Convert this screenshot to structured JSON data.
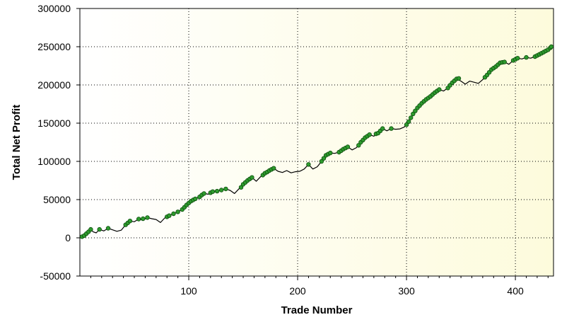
{
  "chart_data": {
    "type": "line",
    "title": "",
    "xlabel": "Trade Number",
    "ylabel": "Total Net Profit",
    "xlim": [
      0,
      435
    ],
    "ylim": [
      -50000,
      300000
    ],
    "x_ticks": [
      100,
      200,
      300,
      400
    ],
    "y_ticks": [
      -50000,
      0,
      50000,
      100000,
      150000,
      200000,
      250000,
      300000
    ],
    "grid": true,
    "legend": "none",
    "colors": {
      "line": "#000000",
      "new_high_marker": "#2e9b2e",
      "new_high_marker_edge": "#0e4e0e",
      "background_left": "#ffffff",
      "background_right": "#fdfbdc",
      "grid": "#000000"
    },
    "series": [
      {
        "values": [
          [
            0,
            0
          ],
          [
            4,
            2500
          ],
          [
            8,
            7000
          ],
          [
            10,
            11000
          ],
          [
            12,
            8000
          ],
          [
            15,
            6500
          ],
          [
            18,
            11000
          ],
          [
            22,
            9000
          ],
          [
            26,
            12500
          ],
          [
            30,
            10500
          ],
          [
            34,
            8500
          ],
          [
            38,
            10000
          ],
          [
            42,
            17000
          ],
          [
            46,
            22000
          ],
          [
            50,
            21000
          ],
          [
            54,
            24500
          ],
          [
            58,
            23000
          ],
          [
            62,
            26500
          ],
          [
            66,
            25000
          ],
          [
            70,
            24000
          ],
          [
            74,
            20000
          ],
          [
            78,
            26000
          ],
          [
            82,
            29000
          ],
          [
            86,
            31500
          ],
          [
            90,
            34000
          ],
          [
            94,
            37000
          ],
          [
            98,
            43000
          ],
          [
            102,
            48000
          ],
          [
            106,
            51000
          ],
          [
            110,
            53500
          ],
          [
            114,
            58000
          ],
          [
            118,
            57000
          ],
          [
            122,
            60500
          ],
          [
            126,
            61000
          ],
          [
            130,
            62500
          ],
          [
            134,
            64000
          ],
          [
            138,
            62000
          ],
          [
            142,
            58000
          ],
          [
            146,
            64000
          ],
          [
            150,
            70000
          ],
          [
            154,
            75000
          ],
          [
            158,
            79000
          ],
          [
            162,
            74000
          ],
          [
            166,
            80000
          ],
          [
            170,
            84500
          ],
          [
            174,
            88000
          ],
          [
            178,
            91000
          ],
          [
            182,
            87000
          ],
          [
            186,
            85500
          ],
          [
            190,
            88000
          ],
          [
            194,
            85000
          ],
          [
            198,
            86500
          ],
          [
            202,
            87000
          ],
          [
            206,
            90000
          ],
          [
            210,
            96000
          ],
          [
            214,
            90000
          ],
          [
            218,
            93000
          ],
          [
            222,
            100000
          ],
          [
            226,
            108000
          ],
          [
            230,
            111000
          ],
          [
            234,
            110500
          ],
          [
            238,
            112000
          ],
          [
            242,
            116000
          ],
          [
            246,
            119000
          ],
          [
            250,
            115000
          ],
          [
            254,
            118000
          ],
          [
            258,
            125000
          ],
          [
            262,
            131000
          ],
          [
            266,
            135000
          ],
          [
            270,
            133000
          ],
          [
            274,
            137000
          ],
          [
            278,
            143000
          ],
          [
            282,
            140000
          ],
          [
            286,
            143000
          ],
          [
            290,
            142000
          ],
          [
            294,
            142500
          ],
          [
            298,
            145000
          ],
          [
            302,
            152000
          ],
          [
            306,
            162000
          ],
          [
            310,
            170000
          ],
          [
            314,
            176000
          ],
          [
            318,
            181000
          ],
          [
            322,
            185000
          ],
          [
            326,
            190000
          ],
          [
            330,
            194000
          ],
          [
            334,
            192000
          ],
          [
            338,
            196000
          ],
          [
            342,
            203000
          ],
          [
            346,
            208000
          ],
          [
            350,
            205000
          ],
          [
            354,
            201000
          ],
          [
            358,
            205000
          ],
          [
            362,
            203500
          ],
          [
            366,
            202000
          ],
          [
            370,
            207000
          ],
          [
            374,
            213000
          ],
          [
            378,
            220000
          ],
          [
            382,
            224000
          ],
          [
            386,
            229000
          ],
          [
            390,
            230000
          ],
          [
            394,
            227000
          ],
          [
            398,
            232000
          ],
          [
            402,
            235000
          ],
          [
            406,
            234000
          ],
          [
            410,
            236000
          ],
          [
            414,
            235000
          ],
          [
            418,
            237000
          ],
          [
            422,
            240000
          ],
          [
            426,
            243000
          ],
          [
            430,
            246000
          ],
          [
            433,
            250000
          ]
        ]
      }
    ],
    "new_high_markers": [
      [
        2,
        1500
      ],
      [
        4,
        3000
      ],
      [
        6,
        5500
      ],
      [
        8,
        8000
      ],
      [
        10,
        11000
      ],
      [
        18,
        11000
      ],
      [
        26,
        12500
      ],
      [
        42,
        17000
      ],
      [
        44,
        19500
      ],
      [
        46,
        22000
      ],
      [
        54,
        24500
      ],
      [
        58,
        25000
      ],
      [
        62,
        26500
      ],
      [
        80,
        27500
      ],
      [
        82,
        29000
      ],
      [
        86,
        31500
      ],
      [
        90,
        34000
      ],
      [
        94,
        37000
      ],
      [
        96,
        40000
      ],
      [
        98,
        43000
      ],
      [
        100,
        45500
      ],
      [
        102,
        48000
      ],
      [
        104,
        49500
      ],
      [
        106,
        51000
      ],
      [
        110,
        53500
      ],
      [
        112,
        56000
      ],
      [
        114,
        58000
      ],
      [
        120,
        59000
      ],
      [
        122,
        60500
      ],
      [
        126,
        61000
      ],
      [
        130,
        62500
      ],
      [
        134,
        64000
      ],
      [
        148,
        66000
      ],
      [
        150,
        70000
      ],
      [
        152,
        72500
      ],
      [
        154,
        75000
      ],
      [
        156,
        77000
      ],
      [
        158,
        79000
      ],
      [
        168,
        82000
      ],
      [
        170,
        84500
      ],
      [
        172,
        86000
      ],
      [
        174,
        88000
      ],
      [
        176,
        89500
      ],
      [
        178,
        91000
      ],
      [
        210,
        96000
      ],
      [
        222,
        100000
      ],
      [
        224,
        104000
      ],
      [
        226,
        108000
      ],
      [
        228,
        109500
      ],
      [
        230,
        111000
      ],
      [
        238,
        112000
      ],
      [
        240,
        114000
      ],
      [
        242,
        116000
      ],
      [
        244,
        117500
      ],
      [
        246,
        119000
      ],
      [
        256,
        121000
      ],
      [
        258,
        125000
      ],
      [
        260,
        128000
      ],
      [
        262,
        131000
      ],
      [
        264,
        133000
      ],
      [
        266,
        135000
      ],
      [
        272,
        136000
      ],
      [
        274,
        137000
      ],
      [
        276,
        140000
      ],
      [
        278,
        143000
      ],
      [
        286,
        143000
      ],
      [
        300,
        148000
      ],
      [
        302,
        152000
      ],
      [
        304,
        157000
      ],
      [
        306,
        162000
      ],
      [
        308,
        166000
      ],
      [
        310,
        170000
      ],
      [
        312,
        173000
      ],
      [
        314,
        176000
      ],
      [
        316,
        178500
      ],
      [
        318,
        181000
      ],
      [
        320,
        183000
      ],
      [
        322,
        185000
      ],
      [
        324,
        187500
      ],
      [
        326,
        190000
      ],
      [
        328,
        192000
      ],
      [
        330,
        194000
      ],
      [
        338,
        196000
      ],
      [
        340,
        199500
      ],
      [
        342,
        203000
      ],
      [
        344,
        205500
      ],
      [
        346,
        208000
      ],
      [
        348,
        208500
      ],
      [
        372,
        210000
      ],
      [
        374,
        213000
      ],
      [
        376,
        216500
      ],
      [
        378,
        220000
      ],
      [
        380,
        222000
      ],
      [
        382,
        224000
      ],
      [
        384,
        226500
      ],
      [
        386,
        229000
      ],
      [
        388,
        229500
      ],
      [
        390,
        230000
      ],
      [
        398,
        232000
      ],
      [
        400,
        233500
      ],
      [
        402,
        235000
      ],
      [
        410,
        236000
      ],
      [
        418,
        237000
      ],
      [
        420,
        238500
      ],
      [
        422,
        240000
      ],
      [
        424,
        241500
      ],
      [
        426,
        243000
      ],
      [
        428,
        244500
      ],
      [
        430,
        246000
      ],
      [
        432,
        248500
      ],
      [
        433,
        250000
      ]
    ]
  }
}
